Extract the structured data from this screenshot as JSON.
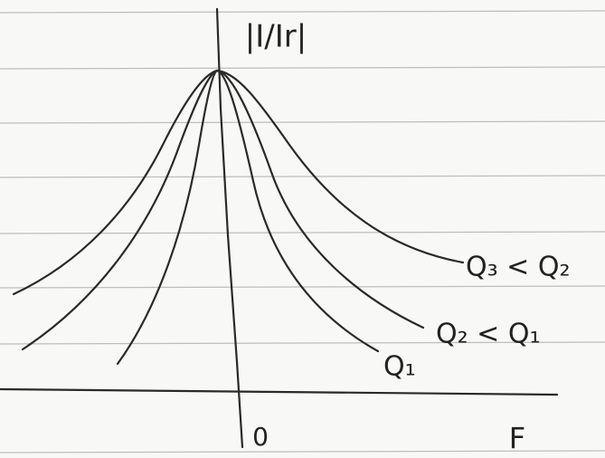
{
  "axes": {
    "y_label": "|I/Ir|",
    "origin": "0",
    "x_label": "F"
  },
  "curves": [
    {
      "label": "Q₁"
    },
    {
      "label": "Q₂ < Q₁"
    },
    {
      "label": "Q₃ < Q₂"
    }
  ]
}
